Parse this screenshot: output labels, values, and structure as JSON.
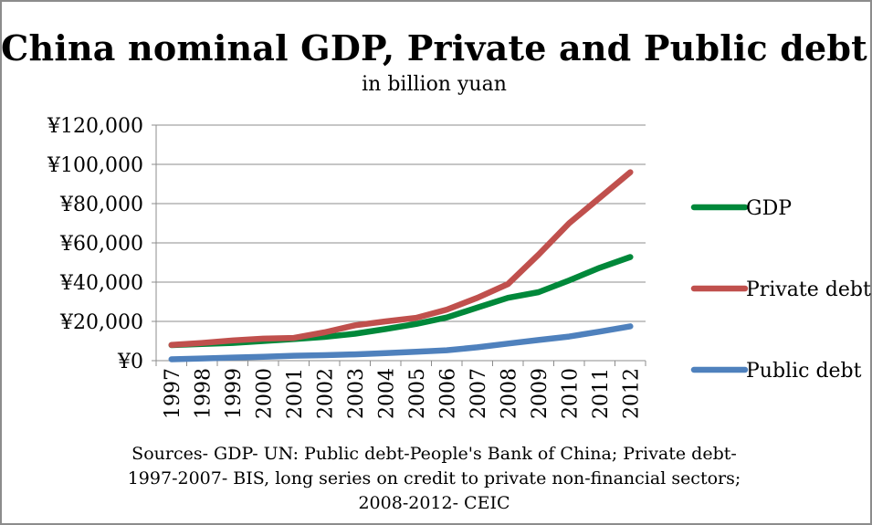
{
  "chart_data": {
    "type": "line",
    "title": "China nominal GDP, Private and Public debt",
    "subtitle": "in billion yuan",
    "x": [
      "1997",
      "1998",
      "1999",
      "2000",
      "2001",
      "2002",
      "2003",
      "2004",
      "2005",
      "2006",
      "2007",
      "2008",
      "2009",
      "2010",
      "2011",
      "2012"
    ],
    "yticks": [
      "¥0",
      "¥20,000",
      "¥40,000",
      "¥60,000",
      "¥80,000",
      "¥100,000",
      "¥120,000"
    ],
    "ylim": [
      0,
      120000
    ],
    "grid": true,
    "legend_position": "right",
    "series": [
      {
        "name": "GDP",
        "color": "#00883a",
        "values": [
          7900,
          8500,
          9000,
          10000,
          11000,
          12100,
          13700,
          16100,
          18700,
          22000,
          27000,
          32000,
          34900,
          40900,
          47300,
          52800
        ]
      },
      {
        "name": "Private debt",
        "color": "#c0504d",
        "values": [
          8000,
          9000,
          10300,
          11200,
          11600,
          14400,
          18000,
          20000,
          21800,
          26000,
          32000,
          39000,
          54000,
          70000,
          83000,
          96000
        ]
      },
      {
        "name": "Public debt",
        "color": "#4f81bd",
        "values": [
          700,
          1100,
          1600,
          2000,
          2500,
          2800,
          3200,
          3800,
          4500,
          5300,
          6800,
          8700,
          10500,
          12300,
          14800,
          17500
        ]
      }
    ]
  },
  "sources": [
    "Sources- GDP- UN: Public debt-People's Bank of China; Private debt-",
    "1997-2007- BIS, long series on credit to private non-financial sectors;",
    "2008-2012- CEIC"
  ]
}
